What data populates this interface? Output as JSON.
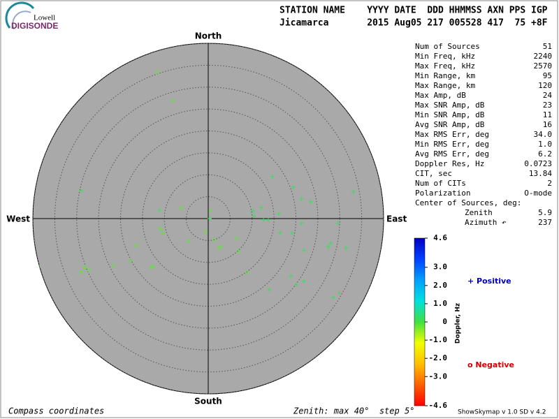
{
  "header": {
    "logo_top": "Lowell",
    "logo_bottom": "DIGISONDE",
    "line1": "STATION NAME    YYYY DATE  DDD HHMMSS AXN PPS IGP",
    "line2": "Jicamarca       2015 Aug05 217 005528 417  75 +8F"
  },
  "stats": [
    [
      "Num of Sources",
      "51"
    ],
    [
      "Min Freq, kHz",
      "2240"
    ],
    [
      "Max Freq, kHz",
      "2570"
    ],
    [
      "Min Range, km",
      "95"
    ],
    [
      "Max Range, km",
      "120"
    ],
    [
      "Max Amp, dB",
      "24"
    ],
    [
      "Max SNR Amp, dB",
      "23"
    ],
    [
      "Min SNR Amp, dB",
      "11"
    ],
    [
      "Avg SNR Amp, dB",
      "16"
    ],
    [
      "Max RMS Err, deg",
      "34.0"
    ],
    [
      "Min RMS Err, deg",
      "1.0"
    ],
    [
      "Avg RMS Err, deg",
      "6.2"
    ],
    [
      "Doppler Res, Hz",
      "0.0723"
    ],
    [
      "CIT, sec",
      "13.84"
    ],
    [
      "Num of CITs",
      "2"
    ],
    [
      "Polarization",
      "O-mode"
    ]
  ],
  "center_of_sources": {
    "title": "Center of Sources, deg:",
    "rows": [
      [
        "Zenith",
        "5.9"
      ],
      [
        "Azimuth ↶",
        "237"
      ]
    ]
  },
  "footer": {
    "left": "Compass coordinates",
    "middle": "Zenith: max 40°  step 5°",
    "right": "ShowSkymap v 1.0  SD v 4.2"
  },
  "chart_data": {
    "type": "skymap",
    "compass": {
      "north": "North",
      "south": "South",
      "east": "East",
      "west": "West"
    },
    "rlim": [
      0,
      40
    ],
    "rticks": [
      5,
      10,
      15,
      20,
      25,
      30,
      35,
      40
    ],
    "x": [
      -11.6,
      -8.1,
      -38.7,
      -29.0,
      -28.2,
      -27.2,
      -21.5,
      -17.8,
      -12.9,
      -12.6,
      -16.4,
      -11.0,
      -10.4,
      -6.1,
      -4.5,
      -0.6,
      0.5,
      1.4,
      2.4,
      2.9,
      6.5,
      6.8,
      8.8,
      -29.0,
      -11.1,
      0.3,
      10.2,
      10.4,
      12.1,
      12.6,
      13.7,
      16.1,
      16.4,
      14.6,
      19.4,
      21.3,
      23.4,
      33.1,
      21.3,
      19.1,
      29.6,
      21.8,
      27.9,
      27.4,
      31.4,
      18.8,
      20.1,
      21.8,
      13.9,
      28.5,
      29.9
    ],
    "y": [
      33.4,
      26.9,
      -11.0,
      -12.3,
      -11.1,
      -11.8,
      -10.7,
      -9.7,
      -11.1,
      -11.0,
      -6.1,
      -2.2,
      -3.2,
      2.4,
      -5.1,
      -3.0,
      1.8,
      -4.9,
      -6.7,
      -6.5,
      -4.5,
      -7.5,
      -12.3,
      6.4,
      1.9,
      0.0,
      1.8,
      0.6,
      2.5,
      -0.3,
      -0.3,
      1.1,
      -3.3,
      9.6,
      7.2,
      4.5,
      3.8,
      6.1,
      -1.1,
      -3.3,
      -1.1,
      -7.3,
      -5.6,
      -6.4,
      -6.7,
      -13.1,
      -15.1,
      -14.3,
      -16.2,
      -18.0,
      -17.0
    ],
    "doppler": [
      -0.2,
      -0.2,
      -0.2,
      -0.2,
      -0.2,
      -0.2,
      -0.2,
      -0.2,
      -0.2,
      -0.2,
      -0.2,
      -0.2,
      -0.2,
      -0.2,
      -0.2,
      -0.2,
      -0.2,
      -0.2,
      -0.2,
      -0.2,
      -0.2,
      -0.2,
      -0.2,
      0.2,
      0.2,
      0.2,
      0.2,
      0.2,
      0.2,
      0.2,
      0.2,
      0.2,
      0.2,
      0.2,
      0.2,
      0.2,
      0.2,
      0.2,
      0.2,
      0.2,
      0.2,
      0.2,
      0.2,
      0.2,
      0.2,
      0.2,
      0.2,
      0.2,
      0.2,
      0.2,
      0.2
    ],
    "colorbar": {
      "label": "Doppler, Hz",
      "clim": [
        -4.6,
        4.6
      ],
      "ticks": [
        4.6,
        {
          "value": 3,
          "label": "3.0"
        },
        {
          "value": 2,
          "label": "2.0"
        },
        {
          "value": 1,
          "label": "1.0"
        },
        0,
        {
          "value": -1,
          "label": "-1.0"
        },
        {
          "value": -2,
          "label": "-2.0"
        },
        {
          "value": -3,
          "label": "-3.0"
        },
        -4.6
      ],
      "colors": [
        "#ff0000",
        "#ff6000",
        "#ffc000",
        "#f0ff00",
        "#40e040",
        "#00e0e0",
        "#00a0ff",
        "#0040ff",
        "#0000c0"
      ]
    },
    "legend": [
      {
        "label": "+ Positive",
        "color": "#0000c0"
      },
      {
        "label": "o Negative",
        "color": "#d00000"
      }
    ]
  }
}
